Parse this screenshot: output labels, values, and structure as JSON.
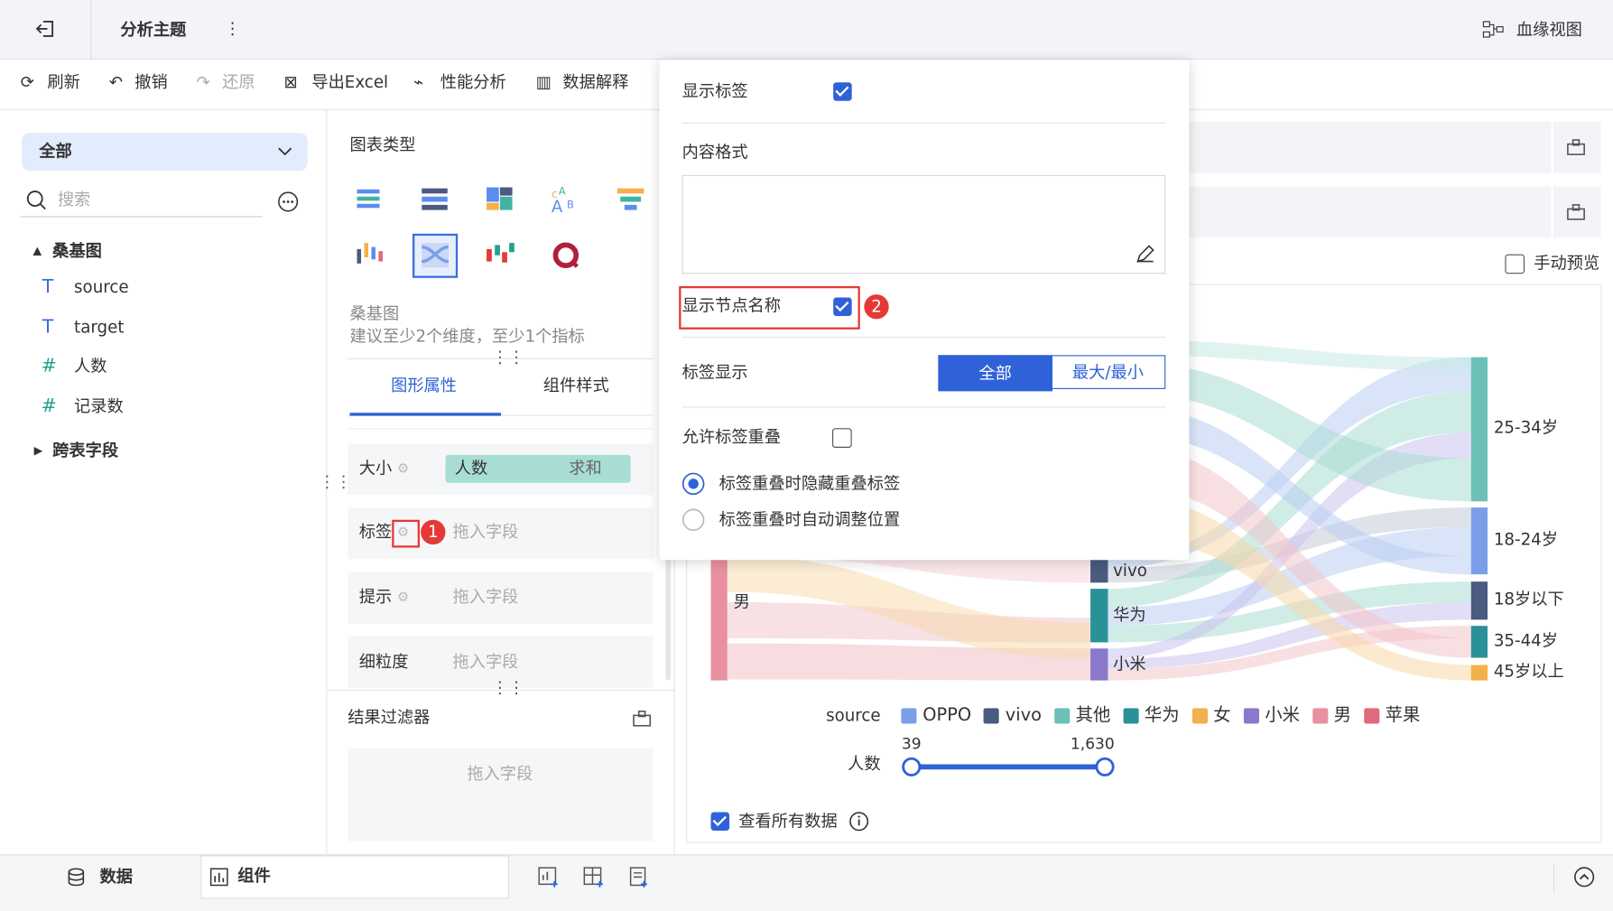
{
  "header": {
    "title": "分析主题",
    "lineage": "血缘视图"
  },
  "toolbar": [
    "刷新",
    "撤销",
    "还原",
    "导出Excel",
    "性能分析",
    "数据解释"
  ],
  "data_panel": {
    "selector": "全部",
    "search_placeholder": "搜索",
    "dataset": "桑基图",
    "fields": [
      "source",
      "target",
      "人数",
      "记录数"
    ],
    "cross_table": "跨表字段"
  },
  "chart_panel": {
    "section_title": "图表类型",
    "chart_name": "桑基图",
    "chart_hint": "建议至少2个维度，至少1个指标",
    "tabs": [
      "图形属性",
      "组件样式"
    ],
    "rows": [
      {
        "label": "大小",
        "field": "人数",
        "aggregation": "求和"
      },
      {
        "label": "标签",
        "placeholder": "拖入字段"
      },
      {
        "label": "提示",
        "placeholder": "拖入字段"
      },
      {
        "label": "细粒度",
        "placeholder": "拖入字段"
      }
    ],
    "step_marker": "1",
    "filter_title": "结果过滤器",
    "filter_placeholder": "拖入字段"
  },
  "label_popup": {
    "show_label": "显示标签",
    "content_format": "内容格式",
    "show_node_name": "显示节点名称",
    "step_marker": "2",
    "label_display": "标签显示",
    "display_options": [
      "全部",
      "最大/最小"
    ],
    "allow_overlap": "允许标签重叠",
    "overlap_options": [
      "标签重叠时隐藏重叠标签",
      "标签重叠时自动调整位置"
    ]
  },
  "preview": {
    "manual_preview": "手动预览",
    "nodes": [
      "男",
      "vivo",
      "华为",
      "小米",
      "25-34岁",
      "18-24岁",
      "18岁以下",
      "35-44岁",
      "45岁以上"
    ],
    "legend_title": "source",
    "legend": [
      {
        "name": "OPPO",
        "color": "#7b9ee8"
      },
      {
        "name": "vivo",
        "color": "#4a5a80"
      },
      {
        "name": "其他",
        "color": "#6cc0b6"
      },
      {
        "name": "华为",
        "color": "#2a9199"
      },
      {
        "name": "女",
        "color": "#f4b04a"
      },
      {
        "name": "小米",
        "color": "#8a78cc"
      },
      {
        "name": "男",
        "color": "#e8909f"
      },
      {
        "name": "苹果",
        "color": "#e06a7a"
      }
    ],
    "slider_label": "人数",
    "slider_min": "39",
    "slider_max": "1,630",
    "view_all": "查看所有数据"
  },
  "bottom_tabs": [
    "数据",
    "组件"
  ]
}
